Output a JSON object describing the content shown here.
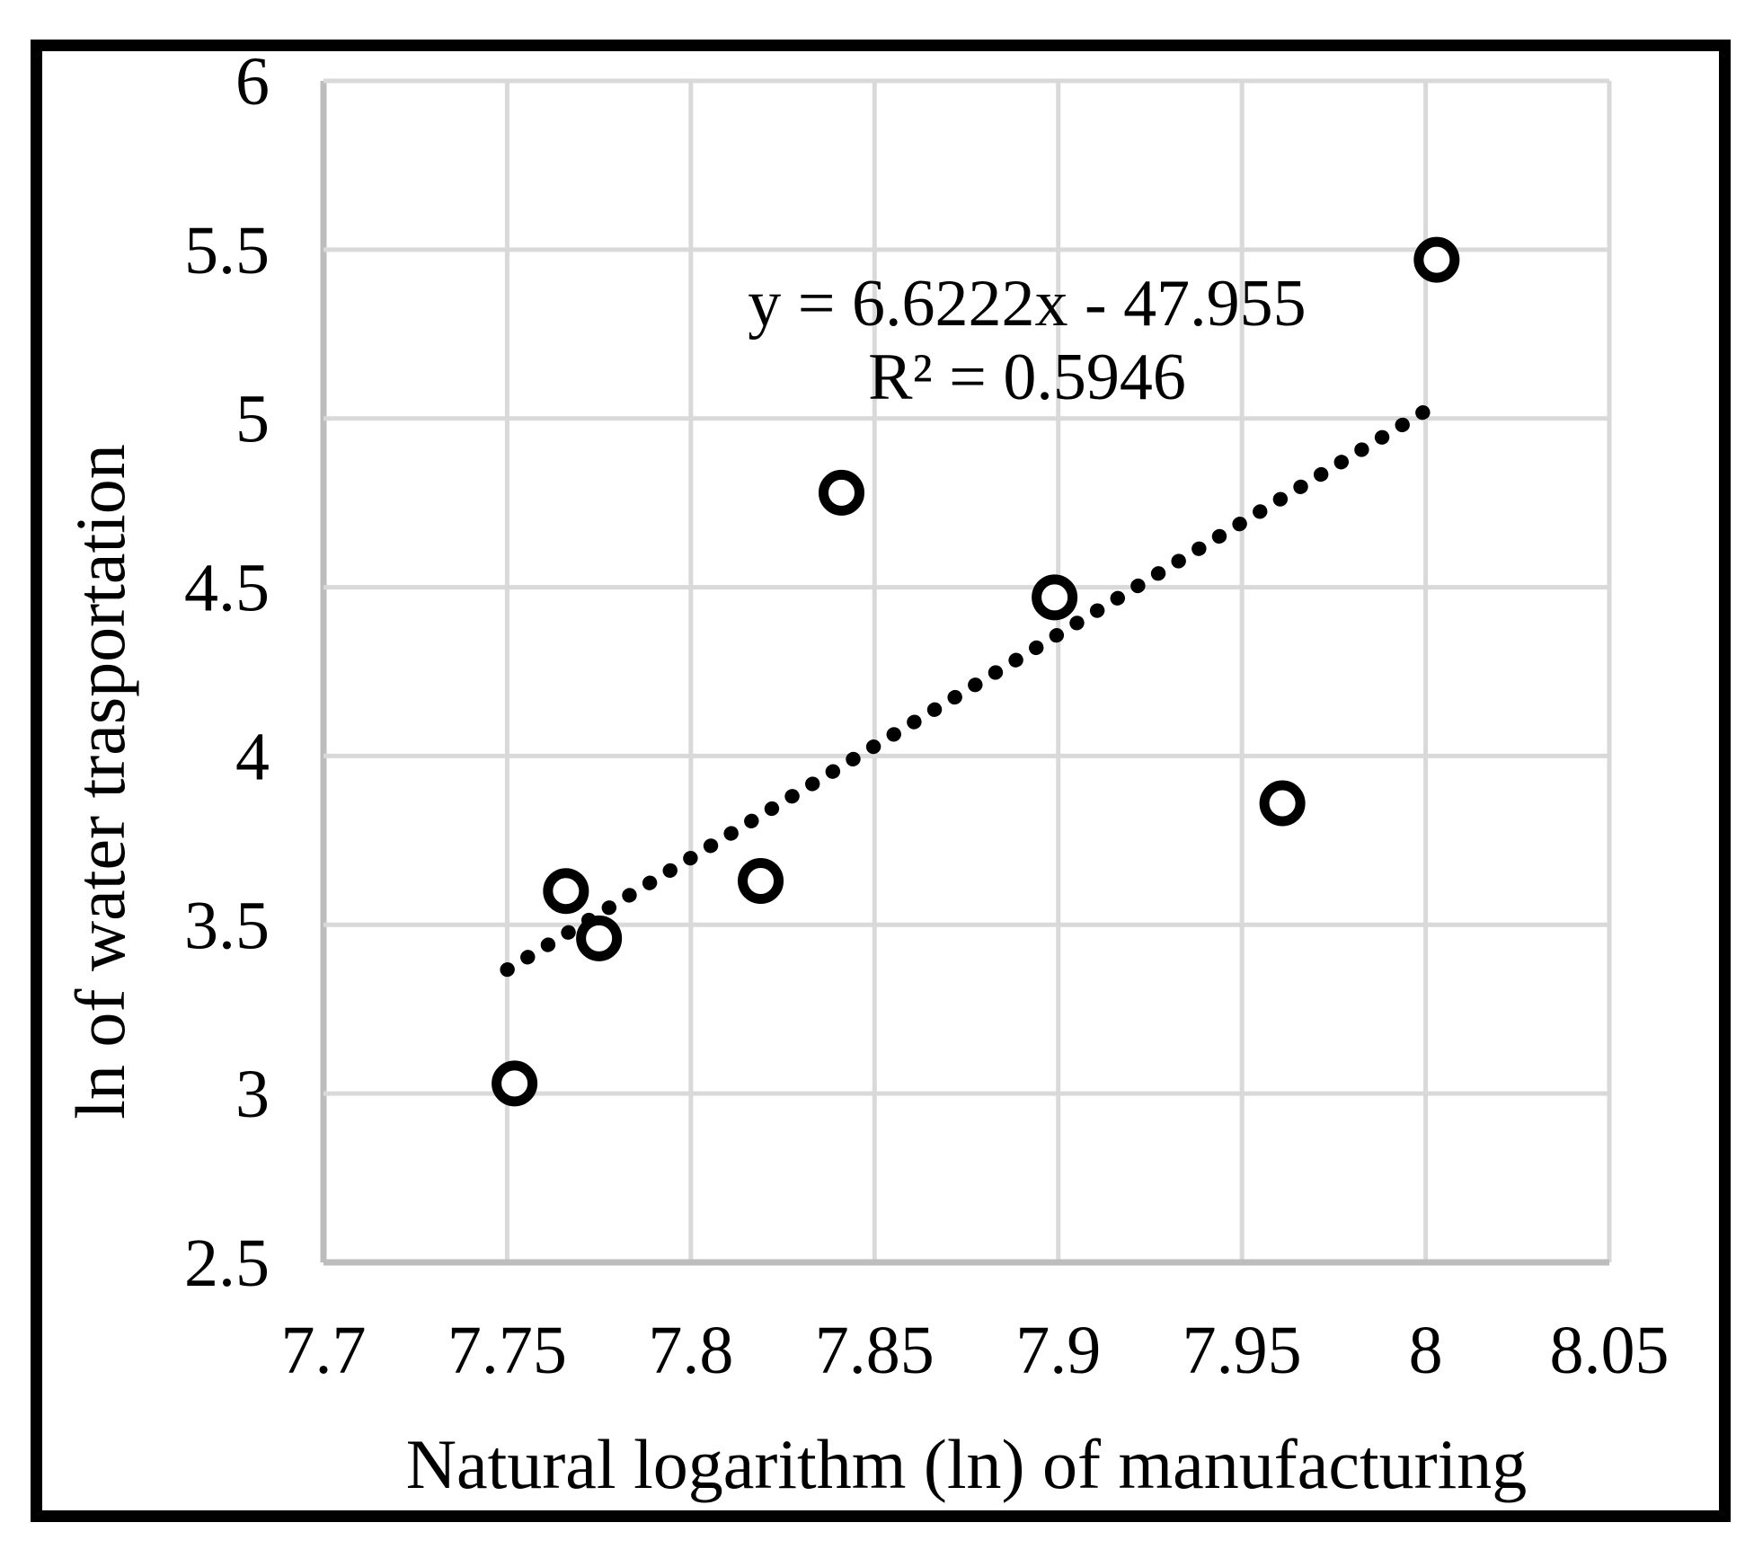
{
  "figure": {
    "background": "#ffffff",
    "border_color": "#000000"
  },
  "chart_data": {
    "type": "scatter",
    "title": "",
    "xlabel": "Natural logarithm (ln) of manufacturing",
    "ylabel": "ln of water trasportation",
    "xlim": [
      7.7,
      8.05
    ],
    "ylim": [
      2.5,
      6
    ],
    "grid": true,
    "x_ticks": [
      7.7,
      7.75,
      7.8,
      7.85,
      7.9,
      7.95,
      8,
      8.05
    ],
    "x_tick_labels": [
      "7.7",
      "7.75",
      "7.8",
      "7.85",
      "7.9",
      "7.95",
      "8",
      "8.05"
    ],
    "y_ticks": [
      6,
      5.5,
      5,
      4.5,
      4,
      3.5,
      3,
      2.5
    ],
    "y_tick_labels": [
      "6",
      "5.5",
      "5",
      "4.5",
      "4",
      "3.5",
      "3",
      "2.5"
    ],
    "points": [
      {
        "x": 7.752,
        "y": 3.03
      },
      {
        "x": 7.766,
        "y": 3.6
      },
      {
        "x": 7.775,
        "y": 3.46
      },
      {
        "x": 7.819,
        "y": 3.63
      },
      {
        "x": 7.841,
        "y": 4.78
      },
      {
        "x": 7.899,
        "y": 4.47
      },
      {
        "x": 7.961,
        "y": 3.86
      },
      {
        "x": 8.003,
        "y": 5.47
      }
    ],
    "trendline": {
      "slope": 6.6222,
      "intercept": -47.955,
      "x_start": 7.75,
      "x_end": 8.0,
      "style": "dotted"
    },
    "annotation": {
      "line1": "y = 6.6222x - 47.955",
      "line2": "R² = 0.5946"
    },
    "colors": {
      "gridline": "#d9d9d9",
      "axis": "#bdbdbd",
      "marker_stroke": "#000000",
      "marker_fill": "#ffffff",
      "trendline": "#000000",
      "text": "#000000"
    },
    "legend": null
  }
}
